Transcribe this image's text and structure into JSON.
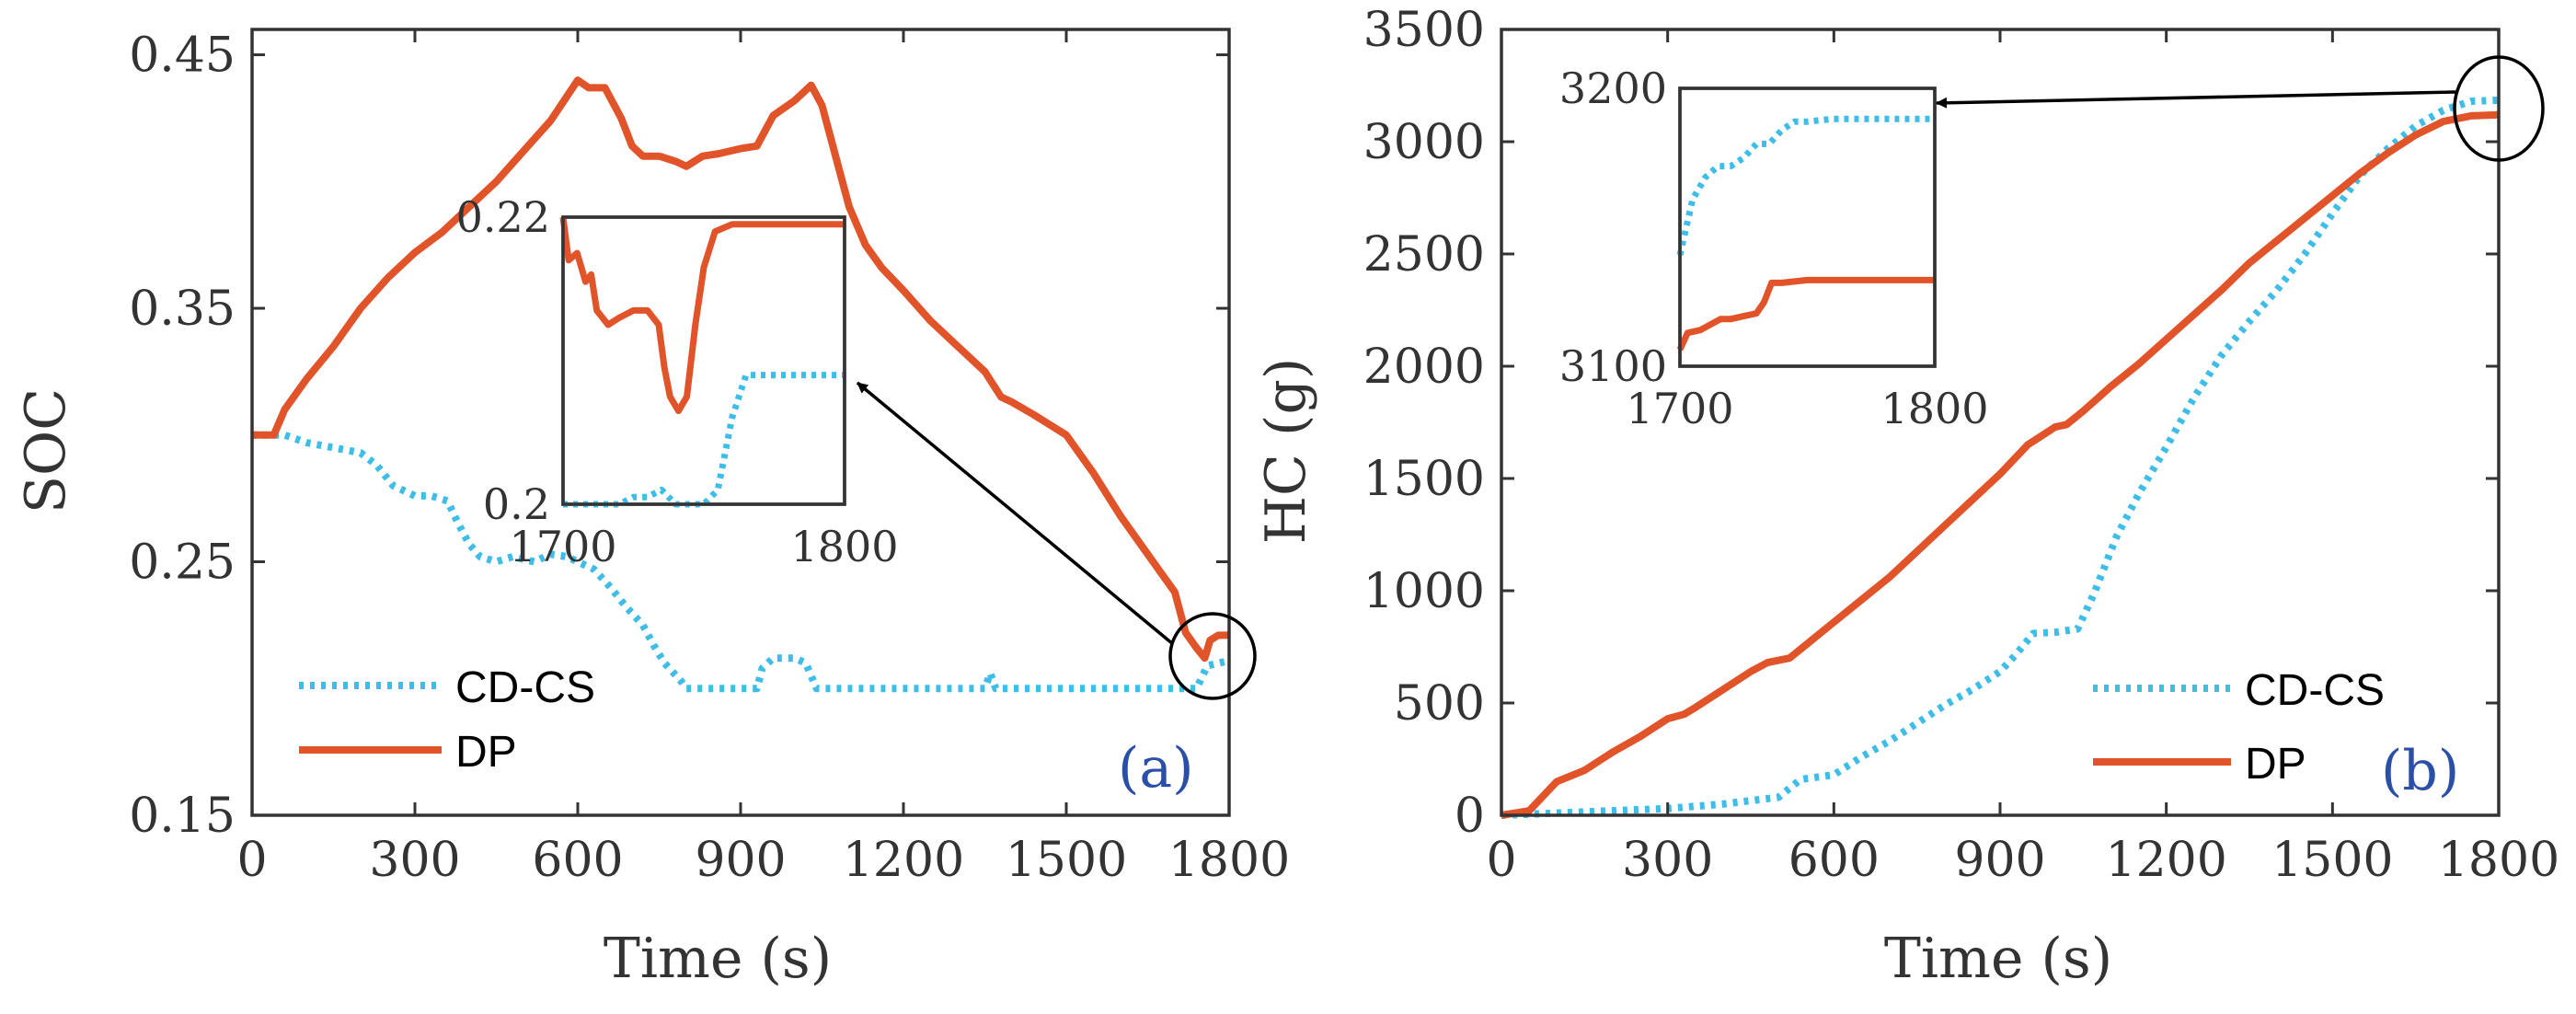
{
  "colors": {
    "cdcs": "#3EBDE8",
    "dp": "#E1542A",
    "axis": "#333333",
    "tag": "#2A4FA8"
  },
  "chart_data": [
    {
      "type": "line",
      "panel_label": "(a)",
      "xlabel": "Time (s)",
      "ylabel": "SOC",
      "xlim": [
        0,
        1800
      ],
      "ylim": [
        0.15,
        0.46
      ],
      "xticks": [
        "0",
        "300",
        "600",
        "900",
        "1200",
        "1500",
        "1800"
      ],
      "yticks": [
        "0.15",
        "0.25",
        "0.35",
        "0.45"
      ],
      "legend_position": "bottom-left",
      "series": [
        {
          "name": "CD-CS",
          "style": "dotted",
          "points": [
            [
              0,
              0.3
            ],
            [
              60,
              0.3
            ],
            [
              100,
              0.297
            ],
            [
              150,
              0.295
            ],
            [
              200,
              0.293
            ],
            [
              230,
              0.288
            ],
            [
              260,
              0.28
            ],
            [
              300,
              0.276
            ],
            [
              330,
              0.276
            ],
            [
              360,
              0.274
            ],
            [
              380,
              0.265
            ],
            [
              400,
              0.257
            ],
            [
              420,
              0.252
            ],
            [
              450,
              0.25
            ],
            [
              480,
              0.252
            ],
            [
              520,
              0.25
            ],
            [
              550,
              0.253
            ],
            [
              580,
              0.252
            ],
            [
              600,
              0.25
            ],
            [
              630,
              0.247
            ],
            [
              660,
              0.24
            ],
            [
              690,
              0.232
            ],
            [
              720,
              0.225
            ],
            [
              740,
              0.217
            ],
            [
              760,
              0.21
            ],
            [
              790,
              0.203
            ],
            [
              800,
              0.2
            ],
            [
              850,
              0.2
            ],
            [
              900,
              0.2
            ],
            [
              930,
              0.2
            ],
            [
              940,
              0.208
            ],
            [
              960,
              0.212
            ],
            [
              1000,
              0.212
            ],
            [
              1020,
              0.21
            ],
            [
              1040,
              0.2
            ],
            [
              1080,
              0.2
            ],
            [
              1150,
              0.2
            ],
            [
              1300,
              0.2
            ],
            [
              1350,
              0.2
            ],
            [
              1360,
              0.206
            ],
            [
              1370,
              0.2
            ],
            [
              1500,
              0.2
            ],
            [
              1600,
              0.2
            ],
            [
              1700,
              0.2
            ],
            [
              1740,
              0.2
            ],
            [
              1760,
              0.209
            ],
            [
              1800,
              0.211
            ]
          ]
        },
        {
          "name": "DP",
          "style": "solid",
          "points": [
            [
              0,
              0.3
            ],
            [
              40,
              0.3
            ],
            [
              60,
              0.31
            ],
            [
              100,
              0.322
            ],
            [
              150,
              0.335
            ],
            [
              200,
              0.35
            ],
            [
              250,
              0.362
            ],
            [
              300,
              0.372
            ],
            [
              350,
              0.38
            ],
            [
              400,
              0.39
            ],
            [
              450,
              0.4
            ],
            [
              500,
              0.412
            ],
            [
              550,
              0.424
            ],
            [
              600,
              0.44
            ],
            [
              620,
              0.437
            ],
            [
              650,
              0.437
            ],
            [
              680,
              0.425
            ],
            [
              700,
              0.414
            ],
            [
              720,
              0.41
            ],
            [
              750,
              0.41
            ],
            [
              780,
              0.408
            ],
            [
              800,
              0.406
            ],
            [
              830,
              0.41
            ],
            [
              860,
              0.411
            ],
            [
              900,
              0.413
            ],
            [
              930,
              0.414
            ],
            [
              960,
              0.426
            ],
            [
              1000,
              0.432
            ],
            [
              1030,
              0.438
            ],
            [
              1050,
              0.43
            ],
            [
              1070,
              0.414
            ],
            [
              1100,
              0.39
            ],
            [
              1130,
              0.375
            ],
            [
              1160,
              0.366
            ],
            [
              1200,
              0.357
            ],
            [
              1250,
              0.345
            ],
            [
              1300,
              0.335
            ],
            [
              1350,
              0.325
            ],
            [
              1380,
              0.315
            ],
            [
              1400,
              0.313
            ],
            [
              1440,
              0.308
            ],
            [
              1500,
              0.3
            ],
            [
              1550,
              0.285
            ],
            [
              1600,
              0.268
            ],
            [
              1650,
              0.253
            ],
            [
              1700,
              0.238
            ],
            [
              1720,
              0.222
            ],
            [
              1740,
              0.216
            ],
            [
              1755,
              0.212
            ],
            [
              1765,
              0.219
            ],
            [
              1780,
              0.221
            ],
            [
              1800,
              0.221
            ]
          ]
        }
      ],
      "inset": {
        "xlim": [
          1700,
          1800
        ],
        "ylim": [
          0.2,
          0.22
        ],
        "xticks": [
          "1700",
          "1800"
        ],
        "yticks": [
          "0.2",
          "0.22"
        ],
        "series": [
          {
            "name": "CD-CS",
            "points": [
              [
                1700,
                0.2
              ],
              [
                1710,
                0.2
              ],
              [
                1720,
                0.2
              ],
              [
                1725,
                0.2005
              ],
              [
                1730,
                0.2005
              ],
              [
                1735,
                0.201
              ],
              [
                1740,
                0.2
              ],
              [
                1750,
                0.2
              ],
              [
                1755,
                0.201
              ],
              [
                1760,
                0.206
              ],
              [
                1765,
                0.209
              ],
              [
                1770,
                0.209
              ],
              [
                1780,
                0.209
              ],
              [
                1800,
                0.209
              ]
            ]
          },
          {
            "name": "DP",
            "points": [
              [
                1700,
                0.22
              ],
              [
                1702,
                0.217
              ],
              [
                1705,
                0.2175
              ],
              [
                1708,
                0.2155
              ],
              [
                1710,
                0.216
              ],
              [
                1712,
                0.2135
              ],
              [
                1716,
                0.2125
              ],
              [
                1720,
                0.213
              ],
              [
                1725,
                0.2135
              ],
              [
                1730,
                0.2135
              ],
              [
                1734,
                0.2125
              ],
              [
                1736,
                0.2095
              ],
              [
                1738,
                0.2075
              ],
              [
                1741,
                0.2065
              ],
              [
                1744,
                0.2075
              ],
              [
                1747,
                0.2125
              ],
              [
                1750,
                0.2165
              ],
              [
                1754,
                0.219
              ],
              [
                1760,
                0.2195
              ],
              [
                1770,
                0.2195
              ],
              [
                1800,
                0.2195
              ]
            ]
          }
        ]
      }
    },
    {
      "type": "line",
      "panel_label": "(b)",
      "xlabel": "Time (s)",
      "ylabel": "HC (g)",
      "xlim": [
        0,
        1800
      ],
      "ylim": [
        0,
        3500
      ],
      "xticks": [
        "0",
        "300",
        "600",
        "900",
        "1200",
        "1500",
        "1800"
      ],
      "yticks": [
        "0",
        "500",
        "1000",
        "1500",
        "2000",
        "2500",
        "3000",
        "3500"
      ],
      "legend_position": "bottom-right",
      "series": [
        {
          "name": "CD-CS",
          "style": "dotted",
          "points": [
            [
              0,
              0
            ],
            [
              100,
              10
            ],
            [
              200,
              20
            ],
            [
              300,
              30
            ],
            [
              400,
              50
            ],
            [
              500,
              80
            ],
            [
              540,
              160
            ],
            [
              600,
              180
            ],
            [
              650,
              260
            ],
            [
              700,
              330
            ],
            [
              750,
              410
            ],
            [
              800,
              490
            ],
            [
              850,
              560
            ],
            [
              900,
              640
            ],
            [
              930,
              720
            ],
            [
              960,
              810
            ],
            [
              1000,
              815
            ],
            [
              1040,
              830
            ],
            [
              1070,
              990
            ],
            [
              1110,
              1240
            ],
            [
              1150,
              1430
            ],
            [
              1200,
              1640
            ],
            [
              1250,
              1860
            ],
            [
              1300,
              2050
            ],
            [
              1350,
              2200
            ],
            [
              1400,
              2340
            ],
            [
              1450,
              2500
            ],
            [
              1500,
              2680
            ],
            [
              1550,
              2850
            ],
            [
              1600,
              2970
            ],
            [
              1650,
              3070
            ],
            [
              1700,
              3140
            ],
            [
              1750,
              3180
            ],
            [
              1800,
              3185
            ]
          ]
        },
        {
          "name": "DP",
          "style": "solid",
          "points": [
            [
              0,
              0
            ],
            [
              50,
              20
            ],
            [
              100,
              150
            ],
            [
              150,
              200
            ],
            [
              200,
              280
            ],
            [
              250,
              350
            ],
            [
              300,
              430
            ],
            [
              330,
              450
            ],
            [
              350,
              480
            ],
            [
              400,
              560
            ],
            [
              450,
              640
            ],
            [
              480,
              680
            ],
            [
              520,
              700
            ],
            [
              550,
              760
            ],
            [
              600,
              860
            ],
            [
              700,
              1060
            ],
            [
              800,
              1290
            ],
            [
              900,
              1520
            ],
            [
              950,
              1650
            ],
            [
              1000,
              1730
            ],
            [
              1020,
              1740
            ],
            [
              1050,
              1800
            ],
            [
              1100,
              1910
            ],
            [
              1150,
              2010
            ],
            [
              1200,
              2120
            ],
            [
              1250,
              2230
            ],
            [
              1300,
              2340
            ],
            [
              1350,
              2460
            ],
            [
              1400,
              2560
            ],
            [
              1450,
              2660
            ],
            [
              1500,
              2760
            ],
            [
              1550,
              2860
            ],
            [
              1600,
              2950
            ],
            [
              1650,
              3030
            ],
            [
              1700,
              3090
            ],
            [
              1750,
              3115
            ],
            [
              1800,
              3120
            ]
          ]
        }
      ],
      "inset": {
        "xlim": [
          1700,
          1800
        ],
        "ylim": [
          3100,
          3200
        ],
        "xticks": [
          "1700",
          "1800"
        ],
        "yticks": [
          "3100",
          "3200"
        ],
        "series": [
          {
            "name": "CD-CS",
            "points": [
              [
                1700,
                3140
              ],
              [
                1705,
                3160
              ],
              [
                1710,
                3168
              ],
              [
                1715,
                3172
              ],
              [
                1720,
                3172
              ],
              [
                1725,
                3175
              ],
              [
                1730,
                3180
              ],
              [
                1735,
                3180
              ],
              [
                1740,
                3185
              ],
              [
                1745,
                3188
              ],
              [
                1750,
                3188
              ],
              [
                1760,
                3189
              ],
              [
                1800,
                3189
              ]
            ]
          },
          {
            "name": "DP",
            "points": [
              [
                1700,
                3106
              ],
              [
                1703,
                3112
              ],
              [
                1708,
                3113
              ],
              [
                1712,
                3115
              ],
              [
                1716,
                3117
              ],
              [
                1720,
                3117
              ],
              [
                1725,
                3118
              ],
              [
                1730,
                3119
              ],
              [
                1733,
                3123
              ],
              [
                1736,
                3130
              ],
              [
                1740,
                3130
              ],
              [
                1750,
                3131
              ],
              [
                1800,
                3131
              ]
            ]
          }
        ]
      }
    }
  ]
}
